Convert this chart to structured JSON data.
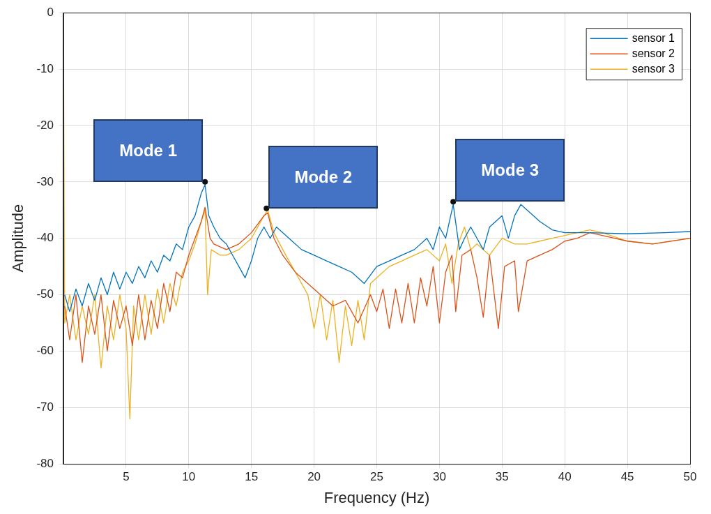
{
  "chart_data": {
    "type": "line",
    "xlabel": "Frequency (Hz)",
    "ylabel": "Amplitude",
    "xlim": [
      0,
      50
    ],
    "xticks": [
      5,
      10,
      15,
      20,
      25,
      30,
      35,
      40,
      45,
      50
    ],
    "ylim": [
      -80,
      0
    ],
    "yticks": [
      -80,
      -70,
      -60,
      -50,
      -40,
      -30,
      -20,
      -10,
      0
    ],
    "grid": true,
    "legend": "top right",
    "marker": "none",
    "line_style": "solid",
    "annotations": [
      {
        "text": "Mode 1",
        "x": 11.3,
        "y": -30
      },
      {
        "text": "Mode 2",
        "x": 16.2,
        "y": -34.7
      },
      {
        "text": "Mode 3",
        "x": 31.1,
        "y": -33.5
      }
    ],
    "series": [
      {
        "name": "sensor 1",
        "color": "#0072bd",
        "x": [
          0.1,
          0.5,
          1,
          1.5,
          2,
          2.5,
          3,
          3.5,
          4,
          4.5,
          5,
          5.5,
          6,
          6.5,
          7,
          7.5,
          8,
          8.5,
          9,
          9.5,
          10,
          10.5,
          11,
          11.3,
          11.6,
          12,
          12.5,
          13,
          13.5,
          14,
          14.5,
          15,
          15.5,
          16,
          16.5,
          17,
          18,
          19,
          20,
          21,
          22,
          23,
          24,
          25,
          26,
          27,
          28,
          29,
          29.5,
          30,
          30.5,
          31.1,
          31.6,
          32,
          32.5,
          33,
          33.5,
          34,
          35,
          35.5,
          36,
          36.5,
          37,
          38,
          39,
          40,
          42,
          45,
          48,
          50
        ],
        "values": [
          -50,
          -53,
          -49,
          -52,
          -48,
          -51,
          -47,
          -50,
          -46,
          -49,
          -46,
          -48,
          -45,
          -47,
          -44,
          -46,
          -43,
          -44,
          -41,
          -42,
          -38,
          -36,
          -32,
          -30.5,
          -36,
          -38,
          -40,
          -41,
          -43,
          -45,
          -47,
          -44,
          -40,
          -38,
          -40,
          -38,
          -40,
          -42,
          -43,
          -44,
          -45,
          -46,
          -48,
          -45,
          -44,
          -43,
          -42,
          -40,
          -42,
          -38,
          -40,
          -34,
          -42,
          -40,
          -38,
          -40,
          -42,
          -38,
          -36,
          -40,
          -36,
          -34,
          -35,
          -37,
          -38.5,
          -39,
          -39,
          -39.2,
          -39,
          -38.8
        ]
      },
      {
        "name": "sensor 2",
        "color": "#d95319",
        "x": [
          0.1,
          0.5,
          1,
          1.5,
          2,
          2.5,
          3,
          3.5,
          4,
          4.5,
          5,
          5.5,
          6,
          6.5,
          7,
          7.5,
          8,
          8.5,
          9,
          9.5,
          10,
          10.5,
          11,
          11.3,
          11.7,
          12,
          13,
          14,
          15,
          16,
          16.3,
          16.8,
          17.5,
          18.5,
          19.5,
          20.5,
          21.5,
          22.5,
          23.5,
          24.5,
          25,
          25.5,
          26,
          26.5,
          27,
          27.5,
          28,
          28.5,
          29,
          29.5,
          30,
          30.5,
          31,
          31.3,
          31.8,
          32.5,
          33,
          33.5,
          34,
          34.7,
          35.2,
          36,
          36.3,
          37,
          38,
          39,
          40,
          41,
          42,
          43,
          45,
          47,
          50
        ],
        "values": [
          -52,
          -58,
          -50,
          -62,
          -52,
          -57,
          -50,
          -60,
          -51,
          -56,
          -52,
          -59,
          -50,
          -58,
          -51,
          -56,
          -48,
          -53,
          -46,
          -47,
          -43,
          -40,
          -37,
          -34.5,
          -40,
          -41,
          -42,
          -41,
          -39,
          -36,
          -35.5,
          -40,
          -43,
          -46,
          -48,
          -50,
          -52,
          -51,
          -55,
          -50,
          -53,
          -49,
          -56,
          -49,
          -55,
          -48,
          -55,
          -47,
          -52,
          -45,
          -55,
          -46,
          -43,
          -53,
          -43,
          -42,
          -47,
          -54,
          -43,
          -56,
          -45,
          -44,
          -53,
          -44,
          -43,
          -42,
          -40.5,
          -40,
          -39,
          -39.5,
          -40.5,
          -41,
          -40
        ]
      },
      {
        "name": "sensor 3",
        "color": "#edb120",
        "x": [
          0,
          0.1,
          0.5,
          1,
          1.5,
          2,
          2.5,
          3,
          3.5,
          4,
          4.5,
          5,
          5.3,
          5.6,
          6,
          6.5,
          7,
          7.5,
          8,
          8.5,
          9,
          9.5,
          10,
          10.5,
          11,
          11.3,
          11.5,
          11.8,
          12.5,
          13,
          14,
          15,
          16,
          16.3,
          16.8,
          17.5,
          18.5,
          19.5,
          20,
          20.5,
          21,
          21.5,
          22,
          22.5,
          23,
          23.5,
          24,
          24.5,
          25,
          26,
          27,
          28,
          29,
          30,
          30.5,
          31,
          31.5,
          32,
          32.5,
          33,
          34,
          35,
          36,
          37,
          38,
          39,
          40,
          41,
          42,
          43,
          45,
          47,
          50
        ],
        "values": [
          0,
          -55,
          -50,
          -58,
          -52,
          -57,
          -50,
          -63,
          -52,
          -58,
          -50,
          -56,
          -72,
          -52,
          -58,
          -50,
          -57,
          -49,
          -55,
          -48,
          -52,
          -46,
          -44,
          -41,
          -37,
          -35,
          -50,
          -42,
          -43,
          -43,
          -42,
          -40,
          -36,
          -35,
          -39,
          -42,
          -46,
          -50,
          -56,
          -50,
          -58,
          -51,
          -62,
          -52,
          -59,
          -51,
          -58,
          -48,
          -47,
          -45,
          -44,
          -43,
          -42,
          -44,
          -41,
          -48,
          -41,
          -38,
          -42,
          -41,
          -43,
          -40,
          -41,
          -41,
          -40.5,
          -40,
          -39.5,
          -39,
          -38.5,
          -39,
          -40.5,
          -41,
          -40
        ]
      }
    ]
  }
}
